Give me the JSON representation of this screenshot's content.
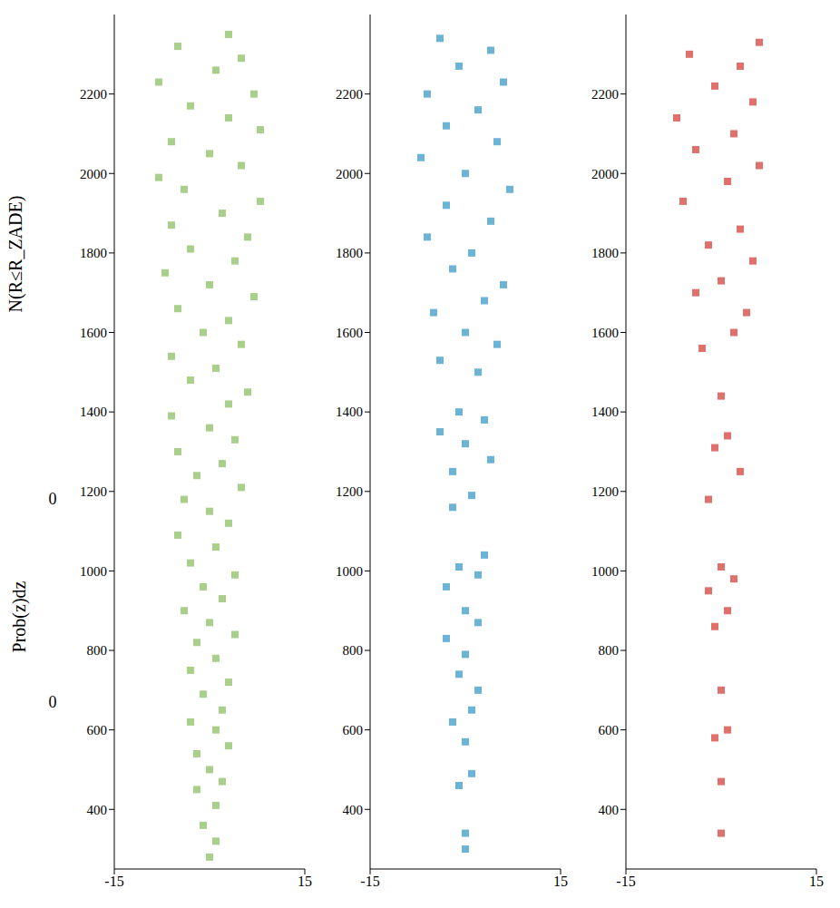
{
  "chart_data": [
    {
      "type": "scatter",
      "ylabel": "N(R≤R_ZADE)",
      "annotations": [
        "0",
        "Prob(z)dz",
        "0"
      ],
      "color": "#8cc063",
      "xlim": [
        -15,
        15
      ],
      "xticks": [
        -15,
        15
      ],
      "ylim": [
        250,
        2400
      ],
      "yticks": [
        400,
        600,
        800,
        1000,
        1200,
        1400,
        1600,
        1800,
        2000,
        2200
      ],
      "x": [
        0,
        1,
        -1,
        1,
        -2,
        2,
        0,
        -2,
        3,
        1,
        -3,
        2,
        -1,
        3,
        -3,
        1,
        -2,
        4,
        0,
        -4,
        2,
        -1,
        4,
        -3,
        1,
        -5,
        3,
        0,
        -4,
        5,
        -2,
        2,
        -5,
        4,
        0,
        -6,
        3,
        6,
        -3,
        1,
        -6,
        5,
        -1,
        3,
        -5,
        7,
        0,
        -7,
        4,
        -3,
        6,
        -6,
        2,
        8,
        -4,
        -8,
        5,
        0,
        -6,
        8,
        3,
        -3,
        7,
        -8,
        1,
        5,
        -5,
        3
      ],
      "values": [
        280,
        320,
        360,
        410,
        450,
        470,
        500,
        540,
        560,
        600,
        620,
        650,
        690,
        720,
        750,
        780,
        820,
        840,
        870,
        900,
        930,
        960,
        990,
        1020,
        1060,
        1090,
        1120,
        1150,
        1180,
        1210,
        1240,
        1270,
        1300,
        1330,
        1360,
        1390,
        1420,
        1450,
        1480,
        1510,
        1540,
        1570,
        1600,
        1630,
        1660,
        1690,
        1720,
        1750,
        1780,
        1810,
        1840,
        1870,
        1900,
        1930,
        1960,
        1990,
        2020,
        2050,
        2080,
        2110,
        2140,
        2170,
        2200,
        2230,
        2260,
        2290,
        2320,
        2350
      ]
    },
    {
      "type": "scatter",
      "color": "#3a9bc8",
      "xlim": [
        -15,
        15
      ],
      "xticks": [
        -15,
        15
      ],
      "ylim": [
        250,
        2400
      ],
      "yticks": [
        400,
        600,
        800,
        1000,
        1200,
        1400,
        1600,
        1800,
        2000,
        2200
      ],
      "x": [
        0,
        0,
        -1,
        1,
        0,
        -2,
        1,
        2,
        -1,
        0,
        -3,
        2,
        0,
        -3,
        2,
        -1,
        3,
        -2,
        1,
        -2,
        4,
        0,
        -4,
        3,
        -1,
        2,
        -4,
        5,
        0,
        -5,
        3,
        6,
        -2,
        1,
        -6,
        4,
        -3,
        7,
        0,
        -7,
        5,
        -3,
        2,
        -6,
        6,
        -1,
        4,
        -4
      ],
      "values": [
        300,
        340,
        460,
        490,
        570,
        620,
        650,
        700,
        740,
        790,
        830,
        870,
        900,
        960,
        990,
        1010,
        1040,
        1160,
        1190,
        1250,
        1280,
        1320,
        1350,
        1380,
        1400,
        1500,
        1530,
        1570,
        1600,
        1650,
        1680,
        1720,
        1760,
        1800,
        1840,
        1880,
        1920,
        1960,
        2000,
        2040,
        2080,
        2120,
        2160,
        2200,
        2230,
        2270,
        2310,
        2340
      ]
    },
    {
      "type": "scatter",
      "color": "#d6403a",
      "xlim": [
        -15,
        15
      ],
      "xticks": [
        -15,
        15
      ],
      "ylim": [
        250,
        2400
      ],
      "yticks": [
        400,
        600,
        800,
        1000,
        1200,
        1400,
        1600,
        1800,
        2000,
        2200
      ],
      "x": [
        0,
        0,
        -1,
        1,
        0,
        -1,
        1,
        -2,
        2,
        0,
        -2,
        3,
        -1,
        1,
        0,
        -3,
        2,
        4,
        -4,
        0,
        5,
        -2,
        3,
        -6,
        1,
        6,
        -4,
        2,
        -7,
        5,
        -1,
        3,
        -5,
        6
      ],
      "values": [
        340,
        470,
        580,
        600,
        700,
        860,
        900,
        950,
        980,
        1010,
        1180,
        1250,
        1310,
        1340,
        1440,
        1560,
        1600,
        1650,
        1700,
        1730,
        1780,
        1820,
        1860,
        1930,
        1980,
        2020,
        2060,
        2100,
        2140,
        2180,
        2220,
        2270,
        2300,
        2330
      ]
    }
  ]
}
